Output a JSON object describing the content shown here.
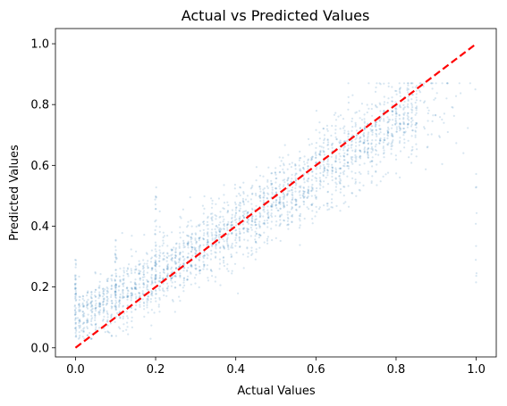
{
  "chart_data": {
    "type": "scatter",
    "title": "Actual vs Predicted Values",
    "xlabel": "Actual Values",
    "ylabel": "Predicted Values",
    "xlim": [
      -0.05,
      1.05
    ],
    "ylim": [
      -0.03,
      1.05
    ],
    "xticks": [
      "0.0",
      "0.2",
      "0.4",
      "0.6",
      "0.8",
      "1.0"
    ],
    "yticks": [
      "0.0",
      "0.2",
      "0.4",
      "0.6",
      "0.8",
      "1.0"
    ],
    "grid": false,
    "legend": "none",
    "point_color": "#1f77b4",
    "point_alpha": 0.18,
    "reference_line": {
      "style": "dashed",
      "color": "#ff0000",
      "points": [
        [
          0.0,
          0.0
        ],
        [
          1.0,
          1.0
        ]
      ]
    },
    "distribution_summary": {
      "x_range": [
        0.0,
        1.0
      ],
      "prediction_trend": [
        {
          "x": 0.0,
          "y": 0.1
        },
        {
          "x": 0.2,
          "y": 0.23
        },
        {
          "x": 0.4,
          "y": 0.4
        },
        {
          "x": 0.6,
          "y": 0.57
        },
        {
          "x": 0.8,
          "y": 0.74
        },
        {
          "x": 1.0,
          "y": 0.85
        }
      ],
      "prediction_floor": 0.03,
      "prediction_ceiling": 0.87,
      "outlier_columns": [
        {
          "x": 0.0,
          "y_range": [
            0.08,
            0.29
          ]
        },
        {
          "x": 0.1,
          "y_range": [
            0.1,
            0.36
          ]
        },
        {
          "x": 0.2,
          "y_range": [
            0.2,
            0.53
          ]
        },
        {
          "x": 1.0,
          "y_range": [
            0.15,
            0.6
          ]
        }
      ]
    }
  }
}
